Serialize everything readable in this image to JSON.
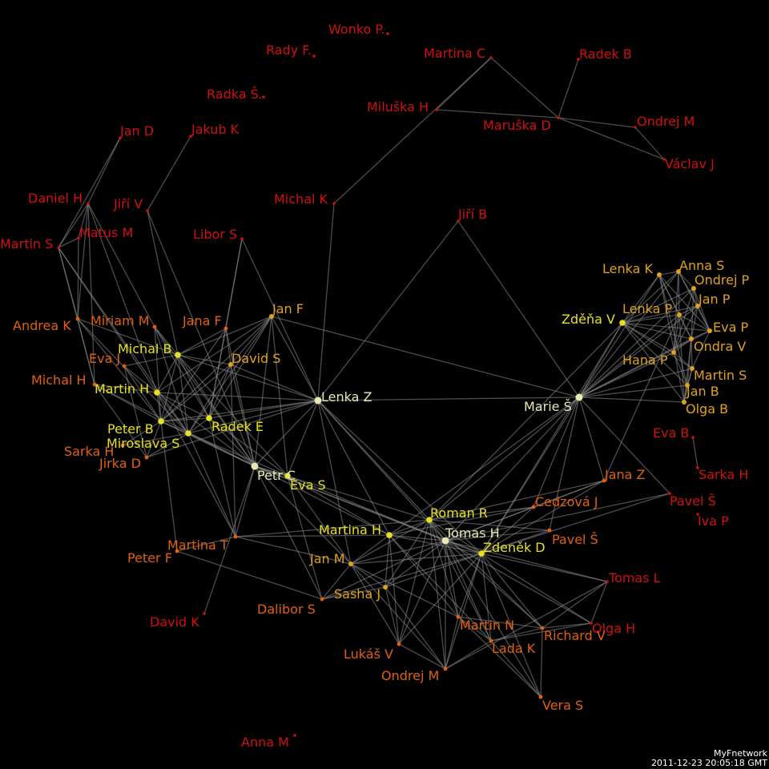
{
  "footer": {
    "app_name": "MyFnetwork",
    "timestamp": "2011-12-23 20:05:18 GMT"
  },
  "legend_colors": {
    "peripheral": "#d01010",
    "low": "#e06010",
    "mid": "#e0a020",
    "high": "#e6e020",
    "hub": "#e8e8b0"
  },
  "nodes": [
    {
      "id": "wonko",
      "label": "Wonko P.",
      "level": "peripheral"
    },
    {
      "id": "rady",
      "label": "Rady F.",
      "level": "peripheral"
    },
    {
      "id": "martinac",
      "label": "Martina C",
      "level": "peripheral"
    },
    {
      "id": "radekb",
      "label": "Radek B",
      "level": "peripheral"
    },
    {
      "id": "radka",
      "label": "Radka Š.",
      "level": "peripheral"
    },
    {
      "id": "miluska",
      "label": "Miluška H",
      "level": "peripheral"
    },
    {
      "id": "maruska",
      "label": "Maruška D",
      "level": "peripheral"
    },
    {
      "id": "ondrejm1",
      "label": "Ondrej M",
      "level": "peripheral"
    },
    {
      "id": "vaclav",
      "label": "Václav J",
      "level": "peripheral"
    },
    {
      "id": "jand",
      "label": "Jan D",
      "level": "peripheral"
    },
    {
      "id": "jakub",
      "label": "Jakub K",
      "level": "peripheral"
    },
    {
      "id": "michalk",
      "label": "Michal K",
      "level": "peripheral"
    },
    {
      "id": "jirib",
      "label": "Jiří B",
      "level": "peripheral"
    },
    {
      "id": "danielh",
      "label": "Daniel H",
      "level": "peripheral"
    },
    {
      "id": "jiriv",
      "label": "Jiří V",
      "level": "peripheral"
    },
    {
      "id": "matus",
      "label": "Matus M",
      "level": "peripheral"
    },
    {
      "id": "martins1",
      "label": "Martin S",
      "level": "peripheral"
    },
    {
      "id": "libor",
      "label": "Libor S",
      "level": "peripheral"
    },
    {
      "id": "andrea",
      "label": "Andrea K",
      "level": "low"
    },
    {
      "id": "miriam",
      "label": "Miriam M",
      "level": "low"
    },
    {
      "id": "janaf",
      "label": "Jana F",
      "level": "low"
    },
    {
      "id": "janf",
      "label": "Jan F",
      "level": "mid"
    },
    {
      "id": "evaj",
      "label": "Eva J",
      "level": "low"
    },
    {
      "id": "michalb",
      "label": "Michal B",
      "level": "high"
    },
    {
      "id": "davids",
      "label": "David S",
      "level": "mid"
    },
    {
      "id": "michalh",
      "label": "Michal H",
      "level": "low"
    },
    {
      "id": "martinh",
      "label": "Martin H",
      "level": "high"
    },
    {
      "id": "lenkaz",
      "label": "Lenka Z",
      "level": "hub"
    },
    {
      "id": "peterb",
      "label": "Peter B",
      "level": "high"
    },
    {
      "id": "radeke",
      "label": "Radek E",
      "level": "high"
    },
    {
      "id": "miroslava",
      "label": "Miroslava S",
      "level": "high"
    },
    {
      "id": "sarkah1",
      "label": "Sarka H",
      "level": "low"
    },
    {
      "id": "jirka",
      "label": "Jirka D",
      "level": "low"
    },
    {
      "id": "petrc",
      "label": "Petr C",
      "level": "hub"
    },
    {
      "id": "evas",
      "label": "Eva S",
      "level": "high"
    },
    {
      "id": "lenkak",
      "label": "Lenka K",
      "level": "mid"
    },
    {
      "id": "annas",
      "label": "Anna S",
      "level": "mid"
    },
    {
      "id": "ondrejp",
      "label": "Ondrej P",
      "level": "mid"
    },
    {
      "id": "janp",
      "label": "Jan P",
      "level": "mid"
    },
    {
      "id": "lenkap",
      "label": "Lenka P",
      "level": "mid"
    },
    {
      "id": "zdena",
      "label": "Zděňa V",
      "level": "high"
    },
    {
      "id": "evap",
      "label": "Eva P",
      "level": "mid"
    },
    {
      "id": "ondrav",
      "label": "Ondra V",
      "level": "mid"
    },
    {
      "id": "hanap",
      "label": "Hana P",
      "level": "mid"
    },
    {
      "id": "martins2",
      "label": "Martin S",
      "level": "mid"
    },
    {
      "id": "janb",
      "label": "Jan B",
      "level": "mid"
    },
    {
      "id": "maries",
      "label": "Marie Š",
      "level": "hub"
    },
    {
      "id": "olgab",
      "label": "Olga B",
      "level": "mid"
    },
    {
      "id": "evab",
      "label": "Eva B",
      "level": "peripheral"
    },
    {
      "id": "sarkah2",
      "label": "Sarka H",
      "level": "peripheral"
    },
    {
      "id": "janaz",
      "label": "Jana Z",
      "level": "low"
    },
    {
      "id": "pavels1",
      "label": "Pavel Š",
      "level": "peripheral"
    },
    {
      "id": "ivap",
      "label": "Iva P",
      "level": "peripheral"
    },
    {
      "id": "cedzova",
      "label": "Cedzová J",
      "level": "low"
    },
    {
      "id": "romanr",
      "label": "Roman R",
      "level": "high"
    },
    {
      "id": "tomash",
      "label": "Tomas H",
      "level": "hub"
    },
    {
      "id": "martinah",
      "label": "Martina H",
      "level": "high"
    },
    {
      "id": "pavels2",
      "label": "Pavel Š",
      "level": "low"
    },
    {
      "id": "zdenekd",
      "label": "Zdeněk D",
      "level": "high"
    },
    {
      "id": "martinat",
      "label": "Martina T",
      "level": "low"
    },
    {
      "id": "peterf",
      "label": "Peter F",
      "level": "low"
    },
    {
      "id": "janm",
      "label": "Jan M",
      "level": "mid"
    },
    {
      "id": "tomasl",
      "label": "Tomas L",
      "level": "peripheral"
    },
    {
      "id": "sashaj",
      "label": "Sasha J",
      "level": "mid"
    },
    {
      "id": "dalibor",
      "label": "Dalibor S",
      "level": "low"
    },
    {
      "id": "davidk",
      "label": "David K",
      "level": "peripheral"
    },
    {
      "id": "martinn",
      "label": "Martin N",
      "level": "low"
    },
    {
      "id": "olgah",
      "label": "Olga H",
      "level": "peripheral"
    },
    {
      "id": "richardv",
      "label": "Richard V",
      "level": "low"
    },
    {
      "id": "ladak",
      "label": "Lada K",
      "level": "low"
    },
    {
      "id": "lukas",
      "label": "Lukáš V",
      "level": "low"
    },
    {
      "id": "ondrejm2",
      "label": "Ondrej M",
      "level": "low"
    },
    {
      "id": "veras",
      "label": "Vera S",
      "level": "low"
    },
    {
      "id": "annam",
      "label": "Anna M",
      "level": "peripheral"
    }
  ],
  "edges": [
    [
      "martinac",
      "miluska"
    ],
    [
      "martinac",
      "maruska"
    ],
    [
      "miluska",
      "maruska"
    ],
    [
      "radekb",
      "maruska"
    ],
    [
      "maruska",
      "ondrejm1"
    ],
    [
      "maruska",
      "vaclav"
    ],
    [
      "ondrejm1",
      "vaclav"
    ],
    [
      "martinac",
      "michalk"
    ],
    [
      "michalk",
      "lenkaz"
    ],
    [
      "jirib",
      "lenkaz"
    ],
    [
      "jirib",
      "maries"
    ],
    [
      "jand",
      "danielh"
    ],
    [
      "jand",
      "martins1"
    ],
    [
      "jakub",
      "jiriv"
    ],
    [
      "jiriv",
      "michalb"
    ],
    [
      "jiriv",
      "petrc"
    ],
    [
      "danielh",
      "matus"
    ],
    [
      "danielh",
      "martins1"
    ],
    [
      "danielh",
      "andrea"
    ],
    [
      "danielh",
      "michalh"
    ],
    [
      "danielh",
      "miriam"
    ],
    [
      "danielh",
      "martinh"
    ],
    [
      "matus",
      "martins1"
    ],
    [
      "matus",
      "andrea"
    ],
    [
      "martins1",
      "andrea"
    ],
    [
      "martins1",
      "michalh"
    ],
    [
      "martins1",
      "martinh"
    ],
    [
      "martins1",
      "miroslava"
    ],
    [
      "andrea",
      "michalh"
    ],
    [
      "andrea",
      "peterb"
    ],
    [
      "andrea",
      "michalb"
    ],
    [
      "andrea",
      "miroslava"
    ],
    [
      "libor",
      "janaf"
    ],
    [
      "libor",
      "lenkaz"
    ],
    [
      "libor",
      "radeke"
    ],
    [
      "miriam",
      "michalb"
    ],
    [
      "miriam",
      "peterb"
    ],
    [
      "miriam",
      "miroslava"
    ],
    [
      "miriam",
      "petrc"
    ],
    [
      "miriam",
      "radeke"
    ],
    [
      "janaf",
      "davids"
    ],
    [
      "janaf",
      "michalb"
    ],
    [
      "janaf",
      "radeke"
    ],
    [
      "janaf",
      "peterb"
    ],
    [
      "janaf",
      "petrc"
    ],
    [
      "janf",
      "lenkaz"
    ],
    [
      "janf",
      "michalb"
    ],
    [
      "janf",
      "davids"
    ],
    [
      "janf",
      "radeke"
    ],
    [
      "janf",
      "miroslava"
    ],
    [
      "janf",
      "petrc"
    ],
    [
      "janf",
      "evas"
    ],
    [
      "janf",
      "peterb"
    ],
    [
      "janf",
      "martinh"
    ],
    [
      "janf",
      "maries"
    ],
    [
      "evaj",
      "michalb"
    ],
    [
      "evaj",
      "martinh"
    ],
    [
      "evaj",
      "peterb"
    ],
    [
      "evaj",
      "jirka"
    ],
    [
      "michalb",
      "davids"
    ],
    [
      "michalb",
      "martinh"
    ],
    [
      "michalb",
      "peterb"
    ],
    [
      "michalb",
      "radeke"
    ],
    [
      "michalb",
      "miroslava"
    ],
    [
      "michalb",
      "petrc"
    ],
    [
      "michalb",
      "lenkaz"
    ],
    [
      "michalb",
      "evas"
    ],
    [
      "davids",
      "radeke"
    ],
    [
      "davids",
      "lenkaz"
    ],
    [
      "davids",
      "petrc"
    ],
    [
      "davids",
      "peterb"
    ],
    [
      "davids",
      "miroslava"
    ],
    [
      "davids",
      "martinat"
    ],
    [
      "michalh",
      "martinh"
    ],
    [
      "michalh",
      "peterb"
    ],
    [
      "michalh",
      "jirka"
    ],
    [
      "michalh",
      "petrc"
    ],
    [
      "martinh",
      "peterb"
    ],
    [
      "martinh",
      "radeke"
    ],
    [
      "martinh",
      "miroslava"
    ],
    [
      "martinh",
      "petrc"
    ],
    [
      "martinh",
      "lenkaz"
    ],
    [
      "martinh",
      "martinat"
    ],
    [
      "lenkaz",
      "peterb"
    ],
    [
      "lenkaz",
      "radeke"
    ],
    [
      "lenkaz",
      "miroslava"
    ],
    [
      "lenkaz",
      "petrc"
    ],
    [
      "lenkaz",
      "evas"
    ],
    [
      "lenkaz",
      "maries"
    ],
    [
      "lenkaz",
      "romanr"
    ],
    [
      "lenkaz",
      "tomash"
    ],
    [
      "lenkaz",
      "martinah"
    ],
    [
      "lenkaz",
      "zdenekd"
    ],
    [
      "lenkaz",
      "janm"
    ],
    [
      "lenkaz",
      "jirka"
    ],
    [
      "peterb",
      "radeke"
    ],
    [
      "peterb",
      "miroslava"
    ],
    [
      "peterb",
      "petrc"
    ],
    [
      "peterb",
      "jirka"
    ],
    [
      "peterb",
      "sarkah1"
    ],
    [
      "peterb",
      "peterf"
    ],
    [
      "radeke",
      "miroslava"
    ],
    [
      "radeke",
      "petrc"
    ],
    [
      "radeke",
      "evas"
    ],
    [
      "radeke",
      "martinat"
    ],
    [
      "miroslava",
      "petrc"
    ],
    [
      "miroslava",
      "jirka"
    ],
    [
      "miroslava",
      "sarkah1"
    ],
    [
      "miroslava",
      "martinat"
    ],
    [
      "miroslava",
      "evas"
    ],
    [
      "petrc",
      "evas"
    ],
    [
      "petrc",
      "romanr"
    ],
    [
      "petrc",
      "tomash"
    ],
    [
      "petrc",
      "martinah"
    ],
    [
      "petrc",
      "janm"
    ],
    [
      "petrc",
      "zdenekd"
    ],
    [
      "petrc",
      "davidk"
    ],
    [
      "petrc",
      "dalibor"
    ],
    [
      "evas",
      "janm"
    ],
    [
      "evas",
      "martinah"
    ],
    [
      "evas",
      "tomash"
    ],
    [
      "evas",
      "dalibor"
    ],
    [
      "lenkak",
      "annas"
    ],
    [
      "lenkak",
      "zdena"
    ],
    [
      "lenkak",
      "lenkap"
    ],
    [
      "lenkak",
      "evap"
    ],
    [
      "lenkak",
      "maries"
    ],
    [
      "lenkak",
      "ondrav"
    ],
    [
      "lenkak",
      "janb"
    ],
    [
      "lenkak",
      "olgab"
    ],
    [
      "annas",
      "ondrejp"
    ],
    [
      "annas",
      "janp"
    ],
    [
      "annas",
      "zdena"
    ],
    [
      "annas",
      "lenkap"
    ],
    [
      "annas",
      "evap"
    ],
    [
      "annas",
      "hanap"
    ],
    [
      "annas",
      "maries"
    ],
    [
      "ondrejp",
      "janp"
    ],
    [
      "ondrejp",
      "zdena"
    ],
    [
      "ondrejp",
      "evap"
    ],
    [
      "ondrejp",
      "ondrav"
    ],
    [
      "ondrejp",
      "hanap"
    ],
    [
      "ondrejp",
      "maries"
    ],
    [
      "janp",
      "zdena"
    ],
    [
      "janp",
      "lenkap"
    ],
    [
      "janp",
      "evap"
    ],
    [
      "janp",
      "hanap"
    ],
    [
      "janp",
      "ondrav"
    ],
    [
      "janp",
      "maries"
    ],
    [
      "lenkap",
      "zdena"
    ],
    [
      "lenkap",
      "evap"
    ],
    [
      "lenkap",
      "ondrav"
    ],
    [
      "lenkap",
      "hanap"
    ],
    [
      "lenkap",
      "maries"
    ],
    [
      "lenkap",
      "olgab"
    ],
    [
      "zdena",
      "evap"
    ],
    [
      "zdena",
      "ondrav"
    ],
    [
      "zdena",
      "hanap"
    ],
    [
      "zdena",
      "martins2"
    ],
    [
      "zdena",
      "janb"
    ],
    [
      "zdena",
      "maries"
    ],
    [
      "zdena",
      "olgab"
    ],
    [
      "zdena",
      "zdenekd"
    ],
    [
      "zdena",
      "romanr"
    ],
    [
      "evap",
      "ondrav"
    ],
    [
      "evap",
      "martins2"
    ],
    [
      "evap",
      "maries"
    ],
    [
      "ondrav",
      "hanap"
    ],
    [
      "ondrav",
      "martins2"
    ],
    [
      "ondrav",
      "janb"
    ],
    [
      "ondrav",
      "maries"
    ],
    [
      "ondrav",
      "olgab"
    ],
    [
      "hanap",
      "martins2"
    ],
    [
      "hanap",
      "maries"
    ],
    [
      "hanap",
      "janb"
    ],
    [
      "martins2",
      "janb"
    ],
    [
      "martins2",
      "olgab"
    ],
    [
      "martins2",
      "maries"
    ],
    [
      "janb",
      "olgab"
    ],
    [
      "janb",
      "maries"
    ],
    [
      "olgab",
      "maries"
    ],
    [
      "maries",
      "romanr"
    ],
    [
      "maries",
      "tomash"
    ],
    [
      "maries",
      "zdenekd"
    ],
    [
      "maries",
      "cedzova"
    ],
    [
      "maries",
      "pavels1"
    ],
    [
      "maries",
      "pavels2"
    ],
    [
      "maries",
      "janaz"
    ],
    [
      "maries",
      "martinah"
    ],
    [
      "evab",
      "sarkah2"
    ],
    [
      "janaz",
      "cedzova"
    ],
    [
      "janaz",
      "romanr"
    ],
    [
      "janaz",
      "zdenekd"
    ],
    [
      "janaz",
      "tomash"
    ],
    [
      "janaz",
      "lenkap"
    ],
    [
      "pavels1",
      "tomash"
    ],
    [
      "pavels1",
      "zdenekd"
    ],
    [
      "cedzova",
      "romanr"
    ],
    [
      "cedzova",
      "tomash"
    ],
    [
      "cedzova",
      "zdenekd"
    ],
    [
      "cedzova",
      "martinah"
    ],
    [
      "romanr",
      "tomash"
    ],
    [
      "romanr",
      "martinah"
    ],
    [
      "romanr",
      "zdenekd"
    ],
    [
      "romanr",
      "janm"
    ],
    [
      "romanr",
      "sashaj"
    ],
    [
      "romanr",
      "martinn"
    ],
    [
      "romanr",
      "ladak"
    ],
    [
      "romanr",
      "lukas"
    ],
    [
      "romanr",
      "pavels2"
    ],
    [
      "romanr",
      "ondrejm2"
    ],
    [
      "romanr",
      "richardv"
    ],
    [
      "tomash",
      "martinah"
    ],
    [
      "tomash",
      "zdenekd"
    ],
    [
      "tomash",
      "janm"
    ],
    [
      "tomash",
      "sashaj"
    ],
    [
      "tomash",
      "martinn"
    ],
    [
      "tomash",
      "ladak"
    ],
    [
      "tomash",
      "lukas"
    ],
    [
      "tomash",
      "ondrejm2"
    ],
    [
      "tomash",
      "richardv"
    ],
    [
      "tomash",
      "olgah"
    ],
    [
      "tomash",
      "tomasl"
    ],
    [
      "tomash",
      "veras"
    ],
    [
      "tomash",
      "pavels2"
    ],
    [
      "tomash",
      "dalibor"
    ],
    [
      "martinah",
      "janm"
    ],
    [
      "martinah",
      "sashaj"
    ],
    [
      "martinah",
      "martinn"
    ],
    [
      "martinah",
      "lukas"
    ],
    [
      "martinah",
      "zdenekd"
    ],
    [
      "martinah",
      "martinat"
    ],
    [
      "martinah",
      "ladak"
    ],
    [
      "pavels2",
      "zdenekd"
    ],
    [
      "zdenekd",
      "janm"
    ],
    [
      "zdenekd",
      "sashaj"
    ],
    [
      "zdenekd",
      "martinn"
    ],
    [
      "zdenekd",
      "ladak"
    ],
    [
      "zdenekd",
      "richardv"
    ],
    [
      "zdenekd",
      "olgah"
    ],
    [
      "zdenekd",
      "tomasl"
    ],
    [
      "zdenekd",
      "veras"
    ],
    [
      "zdenekd",
      "lukas"
    ],
    [
      "zdenekd",
      "ondrejm2"
    ],
    [
      "zdenekd",
      "dalibor"
    ],
    [
      "martinat",
      "peterf"
    ],
    [
      "martinat",
      "petrc"
    ],
    [
      "martinat",
      "janm"
    ],
    [
      "martinat",
      "romanr"
    ],
    [
      "peterf",
      "dalibor"
    ],
    [
      "janm",
      "sashaj"
    ],
    [
      "janm",
      "dalibor"
    ],
    [
      "janm",
      "lukas"
    ],
    [
      "janm",
      "martinn"
    ],
    [
      "janm",
      "ondrejm2"
    ],
    [
      "sashaj",
      "lukas"
    ],
    [
      "sashaj",
      "dalibor"
    ],
    [
      "sashaj",
      "ondrejm2"
    ],
    [
      "martinn",
      "ladak"
    ],
    [
      "martinn",
      "ondrejm2"
    ],
    [
      "martinn",
      "veras"
    ],
    [
      "martinn",
      "richardv"
    ],
    [
      "ladak",
      "richardv"
    ],
    [
      "ladak",
      "olgah"
    ],
    [
      "ladak",
      "veras"
    ],
    [
      "ladak",
      "ondrejm2"
    ],
    [
      "richardv",
      "olgah"
    ],
    [
      "richardv",
      "veras"
    ],
    [
      "richardv",
      "tomasl"
    ],
    [
      "lukas",
      "ondrejm2"
    ],
    [
      "ondrejm2",
      "tomasl"
    ],
    [
      "olgah",
      "tomasl"
    ]
  ]
}
